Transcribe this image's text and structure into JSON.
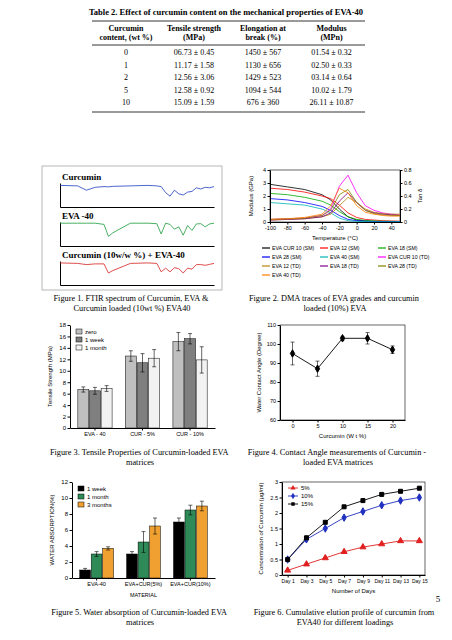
{
  "table": {
    "title": "Table 2. Effect of curcumin content on the mechanical properties of EVA-40",
    "header": [
      [
        "Curcumin",
        "content, (wt %)"
      ],
      [
        "Tensile strength",
        "(MPa)"
      ],
      [
        "Elongation at",
        "break (%)"
      ],
      [
        "Modulus",
        "(MPn)"
      ]
    ],
    "rows": [
      [
        "0",
        "06.73 ± 0.45",
        "1450 ± 567",
        "01.54 ± 0.32"
      ],
      [
        "1",
        "11.17 ± 1.58",
        "1130 ± 656",
        "02.50 ± 0.33"
      ],
      [
        "2",
        "12.56 ± 3.06",
        "1429 ± 523",
        "03.14 ± 0.64"
      ],
      [
        "5",
        "12.58 ± 0.92",
        "1094 ± 544",
        "10.02 ± 1.79"
      ],
      [
        "10",
        "15.09 ± 1.59",
        "676 ± 360",
        "26.11 ± 10.87"
      ]
    ]
  },
  "chart_data": [
    {
      "type": "line",
      "title": "Figure 1. FTIR spectrum of Curcumin, EVA & Curcumin loaded (10wt %) EVA40",
      "x": [
        4000,
        3600,
        3400,
        3200,
        3000,
        2900,
        2800,
        2400,
        2000,
        1800,
        1700,
        1600,
        1500,
        1400,
        1300,
        1200,
        1100,
        1000,
        900,
        800,
        700,
        600,
        500
      ],
      "xlim": [
        4000,
        500
      ],
      "ylim": [
        0,
        100
      ],
      "tick_labels": false,
      "series": [
        {
          "name": "Curcumin",
          "color": "#1f3fbf",
          "values": [
            90,
            88,
            70,
            82,
            85,
            84,
            86,
            88,
            90,
            88,
            85,
            60,
            45,
            70,
            55,
            50,
            62,
            65,
            80,
            75,
            82,
            80,
            85
          ]
        },
        {
          "name": "EVA -40",
          "color": "#1a9a3a",
          "values": [
            95,
            95,
            95,
            95,
            90,
            40,
            55,
            95,
            95,
            93,
            50,
            95,
            90,
            70,
            80,
            45,
            85,
            65,
            92,
            93,
            80,
            92,
            95
          ]
        },
        {
          "name": "Curcumin (10w/w %) + EVA-40",
          "color": "#d62020",
          "values": [
            92,
            90,
            85,
            88,
            88,
            50,
            60,
            90,
            92,
            90,
            55,
            70,
            55,
            72,
            68,
            50,
            70,
            66,
            85,
            85,
            82,
            86,
            90
          ]
        }
      ]
    },
    {
      "type": "line",
      "title": "Figure 2. DMA traces of EVA grades and curcumin loaded (10%) EVA",
      "xlabel": "Temperature (°C)",
      "ylabel": "Modulus (GPa)",
      "y2label": "Tan δ",
      "x": [
        -100,
        -80,
        -60,
        -40,
        -30,
        -20,
        -10,
        0,
        10,
        20,
        30,
        40,
        50
      ],
      "xlim": [
        -100,
        50
      ],
      "xticks": [
        -100,
        -80,
        -60,
        -40,
        -20,
        0,
        20,
        40
      ],
      "ylim": [
        0,
        4
      ],
      "yticks": [
        0,
        1,
        2,
        3,
        4
      ],
      "y2lim": [
        0,
        0.8
      ],
      "y2ticks": [
        0,
        0.2,
        0.4,
        0.6,
        0.8
      ],
      "series": [
        {
          "name": "EVA CUR 10 (SM)",
          "color": "#000000",
          "values": [
            2.9,
            2.7,
            2.5,
            2.1,
            1.7,
            1.0,
            0.4,
            0.15,
            0.08,
            0.05,
            0.04,
            0.03,
            0.03
          ]
        },
        {
          "name": "EVA 12 (SM)",
          "color": "#ff0000",
          "values": [
            2.6,
            2.5,
            2.3,
            2.0,
            1.8,
            1.3,
            0.7,
            0.35,
            0.2,
            0.15,
            0.1,
            0.08,
            0.06
          ]
        },
        {
          "name": "EVA 18 (SM)",
          "color": "#00aa00",
          "values": [
            2.2,
            2.1,
            1.9,
            1.6,
            1.3,
            0.8,
            0.4,
            0.2,
            0.12,
            0.08,
            0.06,
            0.05,
            0.04
          ]
        },
        {
          "name": "EVA 28 (SM)",
          "color": "#0000ff",
          "values": [
            1.8,
            1.7,
            1.5,
            1.2,
            0.9,
            0.5,
            0.2,
            0.1,
            0.06,
            0.04,
            0.03,
            0.02,
            0.02
          ]
        },
        {
          "name": "EVA 40 (SM)",
          "color": "#00b5b5",
          "values": [
            1.5,
            1.4,
            1.3,
            1.0,
            0.7,
            0.3,
            0.1,
            0.05,
            0.03,
            0.02,
            0.02,
            0.01,
            0.01
          ]
        },
        {
          "name": "EVA CUR 10 (TD)",
          "color": "#ff00ff",
          "axis": "y2",
          "values": [
            0.04,
            0.05,
            0.06,
            0.1,
            0.2,
            0.55,
            0.72,
            0.45,
            0.25,
            0.18,
            0.14,
            0.12,
            0.11
          ]
        },
        {
          "name": "EVA 12 (TD)",
          "color": "#b8860b",
          "axis": "y2",
          "values": [
            0.03,
            0.04,
            0.05,
            0.08,
            0.12,
            0.25,
            0.38,
            0.3,
            0.2,
            0.15,
            0.13,
            0.12,
            0.12
          ]
        },
        {
          "name": "EVA 18 (TD)",
          "color": "#800080",
          "axis": "y2",
          "values": [
            0.03,
            0.04,
            0.05,
            0.08,
            0.14,
            0.32,
            0.45,
            0.3,
            0.18,
            0.14,
            0.12,
            0.11,
            0.1
          ]
        },
        {
          "name": "EVA 28 (TD)",
          "color": "#808000",
          "axis": "y2",
          "values": [
            0.04,
            0.05,
            0.06,
            0.1,
            0.18,
            0.42,
            0.5,
            0.3,
            0.18,
            0.13,
            0.11,
            0.1,
            0.1
          ]
        },
        {
          "name": "EVA 40 (TD)",
          "color": "#ff7f00",
          "axis": "y2",
          "values": [
            0.04,
            0.05,
            0.07,
            0.12,
            0.25,
            0.52,
            0.45,
            0.25,
            0.15,
            0.12,
            0.1,
            0.09,
            0.09
          ]
        }
      ]
    },
    {
      "type": "bar",
      "title": "Figure 3. Tensile Properties of Curcumin-loaded EVA matrices",
      "ylabel": "Tensile Strength (MPa)",
      "categories": [
        "EVA - 40",
        "CUR - 5%",
        "CUR - 10%"
      ],
      "ylim": [
        0,
        18
      ],
      "yticks": [
        0,
        2,
        4,
        6,
        8,
        10,
        12,
        14,
        16,
        18
      ],
      "legend": "upper left",
      "series": [
        {
          "name": "zero",
          "color": "#bfbfbf",
          "values": [
            6.73,
            12.58,
            15.09
          ],
          "errors": [
            0.45,
            0.92,
            1.59
          ]
        },
        {
          "name": "1 week",
          "color": "#7f7f7f",
          "values": [
            6.5,
            11.4,
            15.6
          ],
          "errors": [
            0.6,
            1.6,
            0.9
          ]
        },
        {
          "name": "1 month",
          "color": "#f2f2f2",
          "values": [
            6.9,
            12.2,
            11.9
          ],
          "errors": [
            0.5,
            1.5,
            2.3
          ]
        }
      ]
    },
    {
      "type": "line",
      "title": "Figure 4. Contact Angle measurements of Curcumin - loaded EVA matrices",
      "xlabel": "Curcumin (W t %)",
      "ylabel": "Water Contact Angle (Degree)",
      "x": [
        0,
        5,
        10,
        15,
        20
      ],
      "values": [
        95,
        87,
        103,
        103,
        97
      ],
      "errors": [
        6,
        4,
        1,
        3,
        2
      ],
      "color": "#000000",
      "marker": "diamond",
      "xlim": [
        -2.5,
        22.5
      ],
      "xticks": [
        0,
        5,
        10,
        15,
        20
      ],
      "ylim": [
        60,
        110
      ],
      "yticks": [
        60,
        70,
        80,
        90,
        100,
        110
      ]
    },
    {
      "type": "bar",
      "title": "Figure 5. Water absorption of Curcumin-loaded EVA matrices",
      "xlabel": "MATERIAL",
      "ylabel": "WATER ABSORPTION(%)",
      "categories": [
        "EVA-40",
        "EVA+CUR(5%)",
        "EVA+CUR(10%)"
      ],
      "ylim": [
        0,
        12
      ],
      "yticks": [
        0,
        2,
        4,
        6,
        8,
        10,
        12
      ],
      "legend": "upper left",
      "series": [
        {
          "name": "1 week",
          "color": "#000000",
          "values": [
            1.0,
            3.0,
            7.0
          ],
          "errors": [
            0.2,
            0.3,
            0.5
          ]
        },
        {
          "name": "1 month",
          "color": "#2e8b57",
          "values": [
            3.0,
            4.5,
            8.5
          ],
          "errors": [
            0.3,
            1.3,
            0.6
          ]
        },
        {
          "name": "3 months",
          "color": "#f0a030",
          "values": [
            3.7,
            6.5,
            9.0
          ],
          "errors": [
            0.2,
            1.0,
            0.6
          ]
        }
      ]
    },
    {
      "type": "line",
      "title": "Figure 6. Cumulative elution profile of curcumin from EVA40 for different loadings",
      "xlabel": "Number of Days",
      "ylabel": "Concentration of Curcumin (µg/ml)",
      "categories": [
        "Day 1",
        "Day 3",
        "Day 5",
        "Day 7",
        "Day 9",
        "Day 11",
        "Day 13",
        "Day 15"
      ],
      "ylim": [
        0,
        3
      ],
      "yticks": [
        0,
        0.5,
        1,
        1.5,
        2,
        2.5,
        3
      ],
      "legend": "upper left",
      "series": [
        {
          "name": "5%",
          "color": "#e02020",
          "marker": "triangle",
          "values": [
            0.15,
            0.35,
            0.55,
            0.75,
            0.9,
            1.0,
            1.1,
            1.1
          ]
        },
        {
          "name": "10%",
          "color": "#2030c0",
          "marker": "diamond",
          "values": [
            0.5,
            1.15,
            1.5,
            1.85,
            2.05,
            2.25,
            2.4,
            2.5
          ]
        },
        {
          "name": "15%",
          "color": "#000000",
          "marker": "square",
          "values": [
            0.5,
            1.2,
            1.7,
            2.2,
            2.4,
            2.6,
            2.7,
            2.8
          ]
        }
      ]
    }
  ],
  "page_number": "5"
}
